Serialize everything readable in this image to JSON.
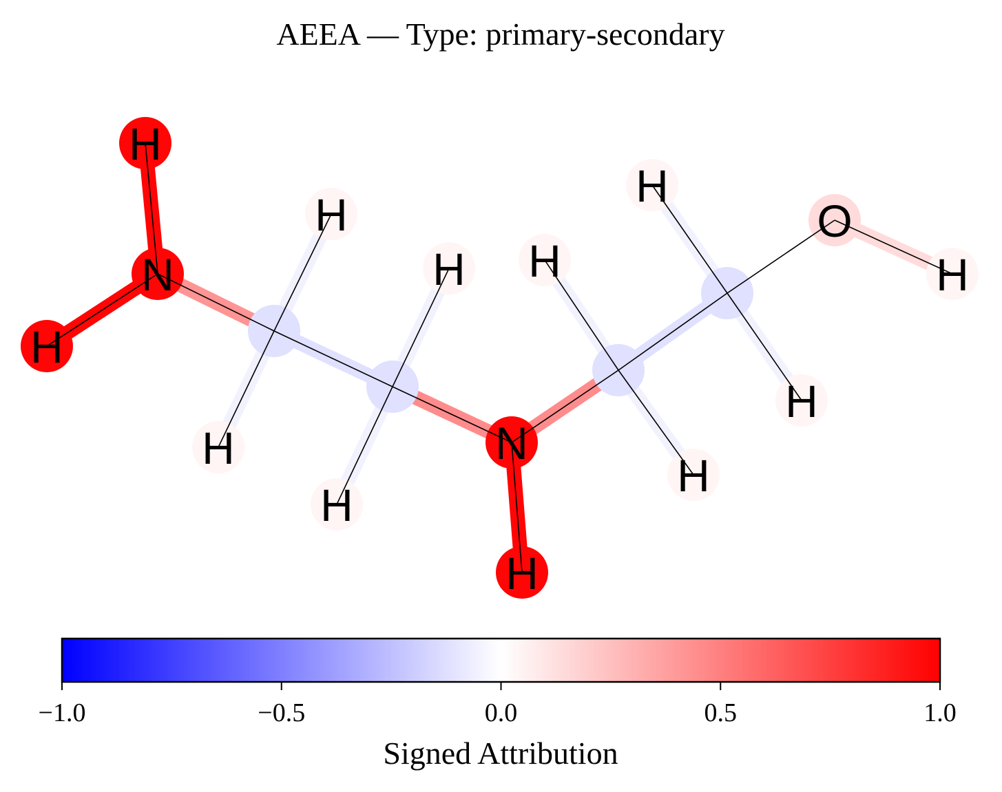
{
  "title": "AEEA — Type: primary-secondary",
  "colorbar": {
    "label": "Signed Attribution",
    "min": -1.0,
    "max": 1.0,
    "ticks": [
      -1.0,
      -0.5,
      0.0,
      0.5,
      1.0
    ],
    "tick_labels": [
      "−1.0",
      "−0.5",
      "0.0",
      "0.5",
      "1.0"
    ],
    "colormap": "bwr",
    "color_low": "#0000ff",
    "color_mid": "#ffffff",
    "color_high": "#ff0000"
  },
  "molecule": {
    "atoms": [
      {
        "id": "N1",
        "element": "N",
        "label": "N",
        "attribution": 0.98
      },
      {
        "id": "H1",
        "element": "H",
        "label": "H",
        "attribution": 0.98
      },
      {
        "id": "H2",
        "element": "H",
        "label": "H",
        "attribution": 0.98
      },
      {
        "id": "C1",
        "element": "C",
        "label": "",
        "attribution": -0.12
      },
      {
        "id": "H3",
        "element": "H",
        "label": "H",
        "attribution": 0.04
      },
      {
        "id": "H4",
        "element": "H",
        "label": "H",
        "attribution": 0.04
      },
      {
        "id": "C2",
        "element": "C",
        "label": "",
        "attribution": -0.12
      },
      {
        "id": "H5",
        "element": "H",
        "label": "H",
        "attribution": 0.04
      },
      {
        "id": "H6",
        "element": "H",
        "label": "H",
        "attribution": 0.04
      },
      {
        "id": "N2",
        "element": "N",
        "label": "N",
        "attribution": 0.98
      },
      {
        "id": "H7",
        "element": "H",
        "label": "H",
        "attribution": 0.98
      },
      {
        "id": "C3",
        "element": "C",
        "label": "",
        "attribution": -0.12
      },
      {
        "id": "H8",
        "element": "H",
        "label": "H",
        "attribution": 0.04
      },
      {
        "id": "H9",
        "element": "H",
        "label": "H",
        "attribution": 0.04
      },
      {
        "id": "C4",
        "element": "C",
        "label": "",
        "attribution": -0.12
      },
      {
        "id": "H10",
        "element": "H",
        "label": "H",
        "attribution": 0.04
      },
      {
        "id": "H11",
        "element": "H",
        "label": "H",
        "attribution": 0.04
      },
      {
        "id": "O1",
        "element": "O",
        "label": "O",
        "attribution": 0.14
      },
      {
        "id": "H12",
        "element": "H",
        "label": "H",
        "attribution": 0.04
      }
    ],
    "bonds": [
      {
        "a": "N1",
        "b": "H1",
        "attribution": 0.98
      },
      {
        "a": "N1",
        "b": "H2",
        "attribution": 0.98
      },
      {
        "a": "N1",
        "b": "C1",
        "attribution": 0.42
      },
      {
        "a": "C1",
        "b": "H3",
        "attribution": -0.05
      },
      {
        "a": "C1",
        "b": "H4",
        "attribution": -0.05
      },
      {
        "a": "C1",
        "b": "C2",
        "attribution": -0.12
      },
      {
        "a": "C2",
        "b": "H5",
        "attribution": -0.05
      },
      {
        "a": "C2",
        "b": "H6",
        "attribution": -0.05
      },
      {
        "a": "C2",
        "b": "N2",
        "attribution": 0.45
      },
      {
        "a": "N2",
        "b": "H7",
        "attribution": 0.98
      },
      {
        "a": "N2",
        "b": "C3",
        "attribution": 0.45
      },
      {
        "a": "C3",
        "b": "H8",
        "attribution": -0.05
      },
      {
        "a": "C3",
        "b": "H9",
        "attribution": -0.05
      },
      {
        "a": "C3",
        "b": "C4",
        "attribution": -0.12
      },
      {
        "a": "C4",
        "b": "H10",
        "attribution": -0.05
      },
      {
        "a": "C4",
        "b": "H11",
        "attribution": -0.05
      },
      {
        "a": "C4",
        "b": "O1",
        "attribution": 0.0
      },
      {
        "a": "O1",
        "b": "H12",
        "attribution": 0.14
      }
    ]
  }
}
